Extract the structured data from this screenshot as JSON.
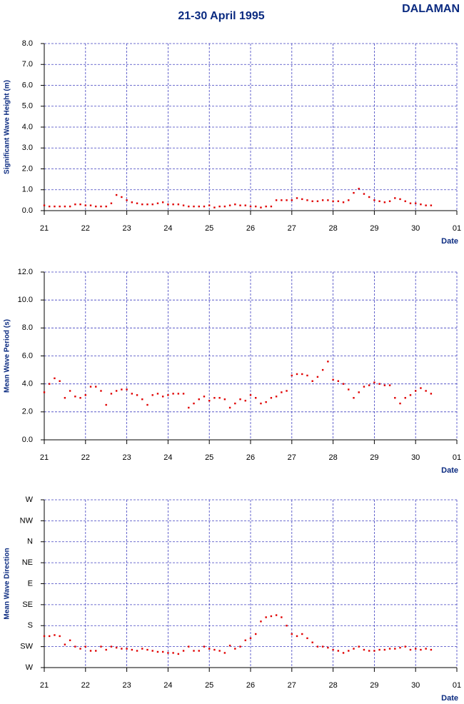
{
  "title": "21-30 April 1995",
  "station": "DALAMAN",
  "chart_data": [
    {
      "type": "scatter",
      "y_label": "Significant Wave Height (m)",
      "x_label": "Date",
      "color": "#e00000",
      "grid": true,
      "x": [
        21,
        21.125,
        21.25,
        21.375,
        21.5,
        21.625,
        21.75,
        21.875,
        22,
        22.125,
        22.25,
        22.375,
        22.5,
        22.625,
        22.75,
        22.875,
        23,
        23.125,
        23.25,
        23.375,
        23.5,
        23.625,
        23.75,
        23.875,
        24,
        24.125,
        24.25,
        24.375,
        24.5,
        24.625,
        24.75,
        24.875,
        25,
        25.125,
        25.25,
        25.375,
        25.5,
        25.625,
        25.75,
        25.875,
        26,
        26.125,
        26.25,
        26.375,
        26.5,
        26.625,
        26.75,
        26.875,
        27,
        27.125,
        27.25,
        27.375,
        27.5,
        27.625,
        27.75,
        27.875,
        28,
        28.125,
        28.25,
        28.375,
        28.5,
        28.625,
        28.75,
        28.875,
        29,
        29.125,
        29.25,
        29.375,
        29.5,
        29.625,
        29.75,
        29.875,
        30,
        30.125,
        30.25,
        30.375
      ],
      "values": [
        0.25,
        0.2,
        0.2,
        0.2,
        0.2,
        0.2,
        0.3,
        0.3,
        0.25,
        0.25,
        0.2,
        0.2,
        0.2,
        0.35,
        0.75,
        0.65,
        0.5,
        0.4,
        0.35,
        0.3,
        0.3,
        0.3,
        0.35,
        0.4,
        0.3,
        0.3,
        0.3,
        0.25,
        0.2,
        0.2,
        0.2,
        0.2,
        0.25,
        0.15,
        0.2,
        0.2,
        0.25,
        0.3,
        0.25,
        0.25,
        0.2,
        0.2,
        0.15,
        0.2,
        0.2,
        0.5,
        0.5,
        0.5,
        0.5,
        0.6,
        0.55,
        0.5,
        0.45,
        0.45,
        0.5,
        0.5,
        0.45,
        0.45,
        0.4,
        0.5,
        0.85,
        1.05,
        0.8,
        0.65,
        0.5,
        0.45,
        0.4,
        0.45,
        0.6,
        0.55,
        0.45,
        0.35,
        0.35,
        0.3,
        0.25,
        0.25
      ],
      "xlim": [
        21,
        31
      ],
      "xticks": [
        21,
        22,
        23,
        24,
        25,
        26,
        27,
        28,
        29,
        30,
        {
          "value": 31,
          "label": "01"
        }
      ],
      "ylim": [
        0,
        8
      ],
      "yticks": [
        {
          "value": 0,
          "label": "0.0"
        },
        {
          "value": 1,
          "label": "1.0"
        },
        {
          "value": 2,
          "label": "2.0"
        },
        {
          "value": 3,
          "label": "3.0"
        },
        {
          "value": 4,
          "label": "4.0"
        },
        {
          "value": 5,
          "label": "5.0"
        },
        {
          "value": 6,
          "label": "6.0"
        },
        {
          "value": 7,
          "label": "7.0"
        },
        {
          "value": 8,
          "label": "8.0"
        }
      ]
    },
    {
      "type": "scatter",
      "y_label": "Mean Wave Period (s)",
      "x_label": "Date",
      "color": "#e00000",
      "grid": true,
      "x": [
        21,
        21.125,
        21.25,
        21.375,
        21.5,
        21.625,
        21.75,
        21.875,
        22,
        22.125,
        22.25,
        22.375,
        22.5,
        22.625,
        22.75,
        22.875,
        23,
        23.125,
        23.25,
        23.375,
        23.5,
        23.625,
        23.75,
        23.875,
        24,
        24.125,
        24.25,
        24.375,
        24.5,
        24.625,
        24.75,
        24.875,
        25,
        25.125,
        25.25,
        25.375,
        25.5,
        25.625,
        25.75,
        25.875,
        26,
        26.125,
        26.25,
        26.375,
        26.5,
        26.625,
        26.75,
        26.875,
        27,
        27.125,
        27.25,
        27.375,
        27.5,
        27.625,
        27.75,
        27.875,
        28,
        28.125,
        28.25,
        28.375,
        28.5,
        28.625,
        28.75,
        28.875,
        29,
        29.125,
        29.25,
        29.375,
        29.5,
        29.625,
        29.75,
        29.875,
        30,
        30.125,
        30.25,
        30.375
      ],
      "values": [
        3.4,
        4.0,
        4.4,
        4.2,
        3.0,
        3.5,
        3.1,
        3.0,
        3.2,
        3.8,
        3.8,
        3.5,
        2.5,
        3.3,
        3.5,
        3.6,
        3.6,
        3.3,
        3.2,
        2.9,
        2.5,
        3.2,
        3.3,
        3.1,
        3.2,
        3.3,
        3.3,
        3.3,
        2.3,
        2.6,
        2.9,
        3.1,
        2.8,
        3.0,
        3.0,
        2.9,
        2.3,
        2.6,
        2.9,
        2.8,
        3.2,
        3.0,
        2.6,
        2.7,
        3.0,
        3.1,
        3.4,
        3.5,
        4.6,
        4.7,
        4.7,
        4.6,
        4.2,
        4.5,
        5.0,
        5.6,
        4.3,
        4.2,
        4.0,
        3.6,
        3.0,
        3.4,
        3.8,
        3.9,
        4.1,
        4.0,
        3.9,
        3.9,
        3.0,
        2.6,
        3.0,
        3.2,
        3.5,
        3.7,
        3.5,
        3.3
      ],
      "xlim": [
        21,
        31
      ],
      "xticks": [
        21,
        22,
        23,
        24,
        25,
        26,
        27,
        28,
        29,
        30,
        {
          "value": 31,
          "label": "01"
        }
      ],
      "ylim": [
        0,
        12
      ],
      "yticks": [
        {
          "value": 0,
          "label": "0.0"
        },
        {
          "value": 2,
          "label": "2.0"
        },
        {
          "value": 4,
          "label": "4.0"
        },
        {
          "value": 6,
          "label": "6.0"
        },
        {
          "value": 8,
          "label": "8.0"
        },
        {
          "value": 10,
          "label": "10.0"
        },
        {
          "value": 12,
          "label": "12.0"
        }
      ]
    },
    {
      "type": "scatter",
      "y_label": "Mean Wave Direction",
      "x_label": "Date",
      "color": "#e00000",
      "grid": true,
      "x": [
        21,
        21.125,
        21.25,
        21.375,
        21.5,
        21.625,
        21.75,
        21.875,
        22,
        22.125,
        22.25,
        22.375,
        22.5,
        22.625,
        22.75,
        22.875,
        23,
        23.125,
        23.25,
        23.375,
        23.5,
        23.625,
        23.75,
        23.875,
        24,
        24.125,
        24.25,
        24.375,
        24.5,
        24.625,
        24.75,
        24.875,
        25,
        25.125,
        25.25,
        25.375,
        25.5,
        25.625,
        25.75,
        25.875,
        26,
        26.125,
        26.25,
        26.375,
        26.5,
        26.625,
        26.75,
        26.875,
        27,
        27.125,
        27.25,
        27.375,
        27.5,
        27.625,
        27.75,
        27.875,
        28,
        28.125,
        28.25,
        28.375,
        28.5,
        28.625,
        28.75,
        28.875,
        29,
        29.125,
        29.25,
        29.375,
        29.5,
        29.625,
        29.75,
        29.875,
        30,
        30.125,
        30.25,
        30.375
      ],
      "values": [
        1.5,
        1.5,
        1.55,
        1.5,
        1.1,
        1.3,
        1.0,
        0.9,
        1.0,
        0.8,
        0.8,
        1.0,
        0.85,
        1.0,
        0.95,
        0.9,
        0.9,
        0.85,
        0.8,
        0.9,
        0.85,
        0.8,
        0.75,
        0.75,
        0.7,
        0.7,
        0.65,
        0.8,
        1.0,
        0.8,
        0.8,
        1.0,
        0.9,
        0.85,
        0.8,
        0.7,
        1.05,
        0.9,
        1.0,
        1.3,
        1.4,
        1.6,
        2.2,
        2.4,
        2.45,
        2.5,
        2.4,
        2.0,
        1.6,
        1.5,
        1.6,
        1.4,
        1.2,
        1.0,
        1.0,
        0.95,
        0.85,
        0.8,
        0.7,
        0.8,
        0.9,
        1.0,
        0.85,
        0.8,
        0.8,
        0.85,
        0.85,
        0.9,
        0.9,
        0.95,
        1.0,
        0.85,
        0.9,
        0.85,
        0.9,
        0.85
      ],
      "xlim": [
        21,
        31
      ],
      "xticks": [
        21,
        22,
        23,
        24,
        25,
        26,
        27,
        28,
        29,
        30,
        {
          "value": 31,
          "label": "01"
        }
      ],
      "ylim": [
        0,
        8
      ],
      "yticks": [
        {
          "value": 0,
          "label": "W"
        },
        {
          "value": 1,
          "label": "SW"
        },
        {
          "value": 2,
          "label": "S"
        },
        {
          "value": 3,
          "label": "SE"
        },
        {
          "value": 4,
          "label": "E"
        },
        {
          "value": 5,
          "label": "NE"
        },
        {
          "value": 6,
          "label": "N"
        },
        {
          "value": 7,
          "label": "NW"
        },
        {
          "value": 8,
          "label": "W"
        }
      ]
    }
  ]
}
